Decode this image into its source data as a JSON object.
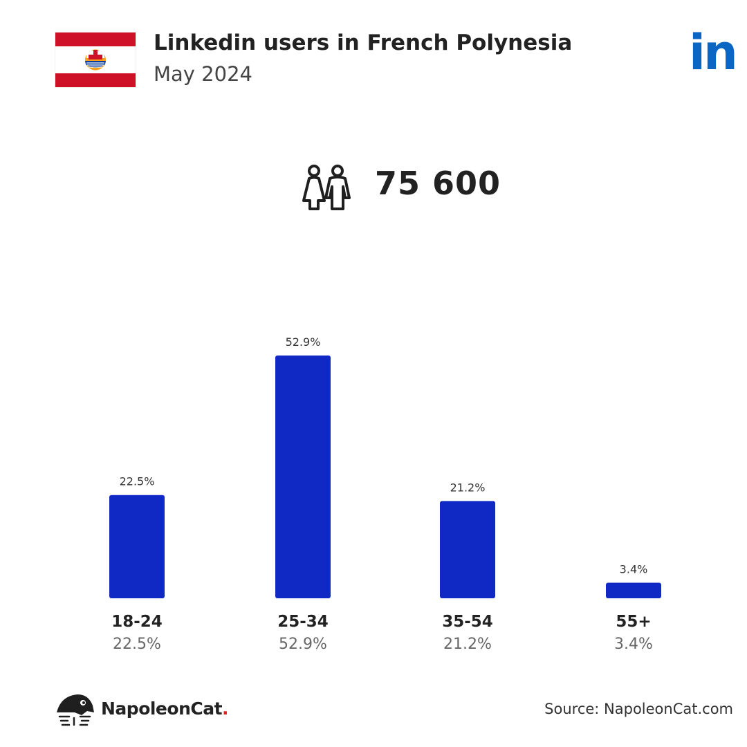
{
  "header": {
    "title": "Linkedin users in French Polynesia",
    "subtitle": "May 2024",
    "logo_text": "in"
  },
  "summary": {
    "total": "75 600",
    "icon": "people-icon"
  },
  "colors": {
    "bar": "#1029c4",
    "flag_red": "#ce1126",
    "linkedin": "#0a66c2",
    "brand_dot": "#e02020"
  },
  "chart_data": {
    "type": "bar",
    "categories": [
      "18-24",
      "25-34",
      "35-54",
      "55+"
    ],
    "values": [
      22.5,
      52.9,
      21.2,
      3.4
    ],
    "value_labels": [
      "22.5%",
      "52.9%",
      "21.2%",
      "3.4%"
    ],
    "title": "",
    "xlabel": "",
    "ylabel": "",
    "ylim": [
      0,
      52.9
    ]
  },
  "footer": {
    "brand_name": "NapoleonCat",
    "brand_dot": ".",
    "source": "Source: NapoleonCat.com"
  }
}
